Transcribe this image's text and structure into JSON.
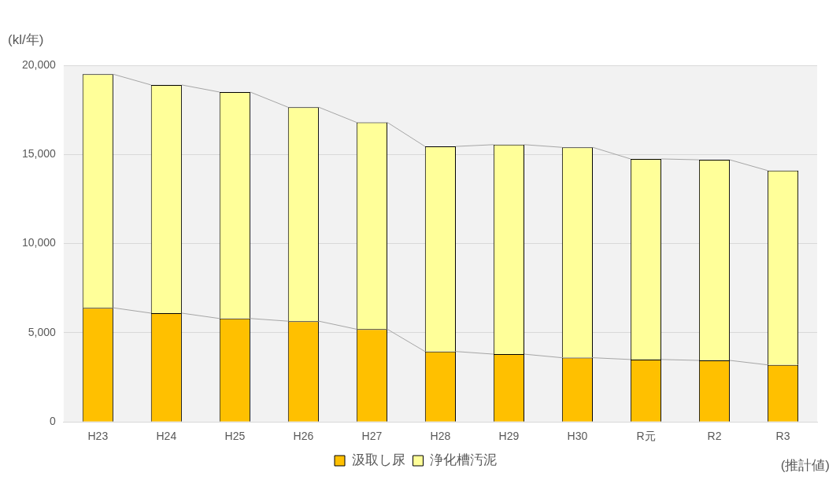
{
  "chart_data": {
    "type": "bar",
    "stacked": true,
    "ylabel": "(kl/年)",
    "categories": [
      "H23",
      "H24",
      "H25",
      "H26",
      "H27",
      "H28",
      "H29",
      "H30",
      "R元",
      "R2",
      "R3"
    ],
    "series": [
      {
        "name": "汲取し尿",
        "color": "#ffc000",
        "values": [
          6400,
          6100,
          5800,
          5650,
          5200,
          3950,
          3800,
          3600,
          3500,
          3450,
          3200
        ]
      },
      {
        "name": "浄化槽汚泥",
        "color": "#ffff99",
        "values": [
          13100,
          12800,
          12700,
          12000,
          11600,
          11500,
          11750,
          11800,
          11250,
          11250,
          10900
        ]
      }
    ],
    "ylim": [
      0,
      20000
    ],
    "yticks": [
      {
        "value": 0,
        "label": "0"
      },
      {
        "value": 5000,
        "label": "5,000"
      },
      {
        "value": 10000,
        "label": "10,000"
      },
      {
        "value": 15000,
        "label": "15,000"
      },
      {
        "value": 20000,
        "label": "20,000"
      }
    ],
    "grid": "y",
    "legend": "bottom",
    "annotations": [
      "(推計値)"
    ]
  }
}
